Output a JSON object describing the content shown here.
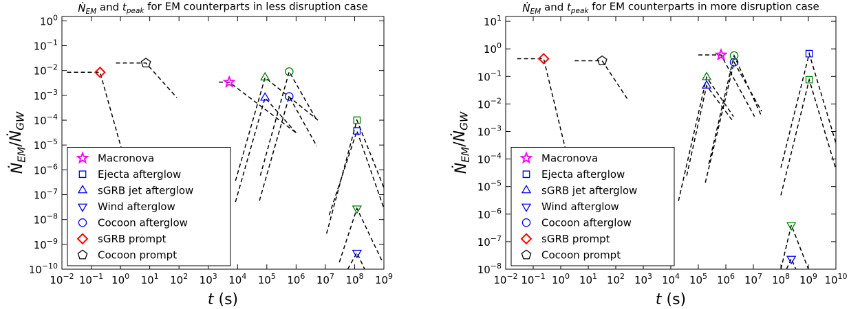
{
  "chart_data": [
    {
      "type": "scatter",
      "title": [
        {
          "text": "Ṅ",
          "italic": true
        },
        {
          "text": "EM",
          "italic": true,
          "sub": true
        },
        {
          "text": " and "
        },
        {
          "text": "t",
          "italic": true
        },
        {
          "text": "peak",
          "italic": true,
          "sub": true
        },
        {
          "text": " for EM counterparts in less disruption case"
        }
      ],
      "x_label": [
        {
          "text": "t",
          "italic": true
        },
        {
          "text": " (s)"
        }
      ],
      "y_label": [
        {
          "text": "Ṅ",
          "italic": true
        },
        {
          "text": "EM",
          "italic": true,
          "sub": true
        },
        {
          "text": "/"
        },
        {
          "text": "Ṅ",
          "italic": true
        },
        {
          "text": "GW",
          "italic": true,
          "sub": true
        }
      ],
      "log_x": true,
      "log_y": true,
      "legend": "lower left",
      "xlim": [
        0.01,
        1000000000
      ],
      "ylim": [
        1e-10,
        1.5
      ],
      "xticks": [
        {
          "value": 0.01,
          "label": "10",
          "exp": "−2"
        },
        {
          "value": 0.1,
          "label": "10",
          "exp": "−1"
        },
        {
          "value": 1,
          "label": "10",
          "exp": "0"
        },
        {
          "value": 10,
          "label": "10",
          "exp": "1"
        },
        {
          "value": 100,
          "label": "10",
          "exp": "2"
        },
        {
          "value": 1000,
          "label": "10",
          "exp": "3"
        },
        {
          "value": 10000,
          "label": "10",
          "exp": "4"
        },
        {
          "value": 100000,
          "label": "10",
          "exp": "5"
        },
        {
          "value": 1000000,
          "label": "10",
          "exp": "6"
        },
        {
          "value": 10000000,
          "label": "10",
          "exp": "7"
        },
        {
          "value": 100000000,
          "label": "10",
          "exp": "8"
        },
        {
          "value": 1000000000,
          "label": "10",
          "exp": "9"
        }
      ],
      "yticks": [
        {
          "value": 1e-10,
          "label": "10",
          "exp": "−10"
        },
        {
          "value": 1e-09,
          "label": "10",
          "exp": "−9"
        },
        {
          "value": 1e-08,
          "label": "10",
          "exp": "−8"
        },
        {
          "value": 1e-07,
          "label": "10",
          "exp": "−7"
        },
        {
          "value": 1e-06,
          "label": "10",
          "exp": "−6"
        },
        {
          "value": 1e-05,
          "label": "10",
          "exp": "−5"
        },
        {
          "value": 0.0001,
          "label": "10",
          "exp": "−4"
        },
        {
          "value": 0.001,
          "label": "10",
          "exp": "−3"
        },
        {
          "value": 0.01,
          "label": "10",
          "exp": "−2"
        },
        {
          "value": 0.1,
          "label": "10",
          "exp": "−1"
        },
        {
          "value": 1,
          "label": "10",
          "exp": "0"
        }
      ],
      "series": [
        {
          "name": "Macronova",
          "color": "#ff00ff",
          "marker": "star",
          "x": [
            5200
          ],
          "values": [
            0.0034
          ]
        },
        {
          "name": "Ejecta afterglow",
          "color": "#0000ff",
          "marker": "square",
          "x": [
            120000000
          ],
          "values": [
            3.7e-05
          ]
        },
        {
          "name": "sGRB jet afterglow",
          "color": "#0000ff",
          "marker": "triangle-up",
          "x": [
            87000
          ],
          "values": [
            0.0008
          ]
        },
        {
          "name": "Wind afterglow",
          "color": "#0000ff",
          "marker": "triangle-down",
          "x": [
            120000000
          ],
          "values": [
            4.6e-10
          ]
        },
        {
          "name": "Cocoon afterglow",
          "color": "#0000ff",
          "marker": "circle",
          "x": [
            580000
          ],
          "values": [
            0.0009
          ]
        },
        {
          "name": "sGRB prompt",
          "color": "#ff0000",
          "marker": "diamond",
          "x": [
            0.2
          ],
          "values": [
            0.0085
          ]
        },
        {
          "name": "Cocoon prompt",
          "color": "#000000",
          "marker": "pentagon",
          "x": [
            7.4
          ],
          "values": [
            0.02
          ]
        },
        {
          "color": "#008000",
          "marker": "square",
          "x": [
            120000000
          ],
          "values": [
            0.0001
          ]
        },
        {
          "color": "#008000",
          "marker": "triangle-up",
          "x": [
            87000
          ],
          "values": [
            0.0052
          ]
        },
        {
          "color": "#008000",
          "marker": "triangle-down",
          "x": [
            120000000
          ],
          "values": [
            2.8e-08
          ]
        },
        {
          "color": "#008000",
          "marker": "circle",
          "x": [
            580000
          ],
          "values": [
            0.009
          ]
        }
      ],
      "curves": [
        {
          "x": [
            0.015,
            0.2,
            1.1
          ],
          "values": [
            0.0085,
            0.0085,
            6.7e-06
          ]
        },
        {
          "x": [
            0.7,
            7.4,
            85
          ],
          "values": [
            0.02,
            0.02,
            0.0008
          ]
        },
        {
          "x": [
            2300,
            5200,
            1000000
          ],
          "values": [
            0.0034,
            0.0034,
            3.1e-05
          ]
        },
        {
          "x": [
            8500,
            87000,
            5600000
          ],
          "values": [
            3.6e-07,
            0.0052,
            0.0001
          ]
        },
        {
          "x": [
            8500,
            87000,
            1000000
          ],
          "values": [
            5.1e-08,
            0.0008,
            3.1e-05
          ]
        },
        {
          "x": [
            60000,
            580000,
            5100000
          ],
          "values": [
            5.9e-07,
            0.009,
            0.0001
          ]
        },
        {
          "x": [
            56000,
            580000,
            5100000
          ],
          "values": [
            5.7e-08,
            0.0009,
            9e-06
          ]
        },
        {
          "x": [
            11000000,
            120000000,
            1000000000
          ],
          "values": [
            2.7e-09,
            0.0001,
            1.9e-07
          ]
        },
        {
          "x": [
            13500000,
            120000000,
            1000000000
          ],
          "values": [
            1.5e-08,
            3.7e-05,
            2.8e-08
          ]
        },
        {
          "x": [
            30000000,
            120000000,
            870000000
          ],
          "values": [
            1.9e-10,
            2.8e-08,
            2.1e-10
          ]
        },
        {
          "x": [
            58000000,
            120000000,
            220000000
          ],
          "values": [
            1e-10,
            4.6e-10,
            1e-10
          ]
        }
      ]
    },
    {
      "type": "scatter",
      "title": [
        {
          "text": "Ṅ",
          "italic": true
        },
        {
          "text": "EM",
          "italic": true,
          "sub": true
        },
        {
          "text": " and "
        },
        {
          "text": "t",
          "italic": true
        },
        {
          "text": "peak",
          "italic": true,
          "sub": true
        },
        {
          "text": " for EM counterparts in more disruption case"
        }
      ],
      "x_label": [
        {
          "text": "t",
          "italic": true
        },
        {
          "text": " (s)"
        }
      ],
      "y_label": [
        {
          "text": "Ṅ",
          "italic": true
        },
        {
          "text": "EM",
          "italic": true,
          "sub": true
        },
        {
          "text": "/"
        },
        {
          "text": "Ṅ",
          "italic": true
        },
        {
          "text": "GW",
          "italic": true,
          "sub": true
        }
      ],
      "log_x": true,
      "log_y": true,
      "legend": "lower left",
      "xlim": [
        0.01,
        10000000000
      ],
      "ylim": [
        1e-08,
        15
      ],
      "xticks": [
        {
          "value": 0.01,
          "label": "10",
          "exp": "−2"
        },
        {
          "value": 0.1,
          "label": "10",
          "exp": "−1"
        },
        {
          "value": 1,
          "label": "10",
          "exp": "0"
        },
        {
          "value": 10,
          "label": "10",
          "exp": "1"
        },
        {
          "value": 100,
          "label": "10",
          "exp": "2"
        },
        {
          "value": 1000,
          "label": "10",
          "exp": "3"
        },
        {
          "value": 10000,
          "label": "10",
          "exp": "4"
        },
        {
          "value": 100000,
          "label": "10",
          "exp": "5"
        },
        {
          "value": 1000000,
          "label": "10",
          "exp": "6"
        },
        {
          "value": 10000000,
          "label": "10",
          "exp": "7"
        },
        {
          "value": 100000000,
          "label": "10",
          "exp": "8"
        },
        {
          "value": 1000000000,
          "label": "10",
          "exp": "9"
        },
        {
          "value": 10000000000,
          "label": "10",
          "exp": "10"
        }
      ],
      "yticks": [
        {
          "value": 1e-08,
          "label": "10",
          "exp": "−8"
        },
        {
          "value": 1e-07,
          "label": "10",
          "exp": "−7"
        },
        {
          "value": 1e-06,
          "label": "10",
          "exp": "−6"
        },
        {
          "value": 1e-05,
          "label": "10",
          "exp": "−5"
        },
        {
          "value": 0.0001,
          "label": "10",
          "exp": "−4"
        },
        {
          "value": 0.001,
          "label": "10",
          "exp": "−3"
        },
        {
          "value": 0.01,
          "label": "10",
          "exp": "−2"
        },
        {
          "value": 0.1,
          "label": "10",
          "exp": "−1"
        },
        {
          "value": 1,
          "label": "10",
          "exp": "0"
        },
        {
          "value": 10,
          "label": "10",
          "exp": "1"
        }
      ],
      "series": [
        {
          "name": "Macronova",
          "color": "#ff00ff",
          "marker": "star",
          "x": [
            670000
          ],
          "values": [
            0.6
          ]
        },
        {
          "name": "Ejecta afterglow",
          "color": "#0000ff",
          "marker": "square",
          "x": [
            1070000000
          ],
          "values": [
            0.67
          ]
        },
        {
          "name": "sGRB jet afterglow",
          "color": "#0000ff",
          "marker": "triangle-up",
          "x": [
            200000
          ],
          "values": [
            0.046
          ]
        },
        {
          "name": "Wind afterglow",
          "color": "#0000ff",
          "marker": "triangle-down",
          "x": [
            240000000
          ],
          "values": [
            2.4e-08
          ]
        },
        {
          "name": "Cocoon afterglow",
          "color": "#0000ff",
          "marker": "circle",
          "x": [
            2000000
          ],
          "values": [
            0.33
          ]
        },
        {
          "name": "sGRB prompt",
          "color": "#ff0000",
          "marker": "diamond",
          "x": [
            0.24
          ],
          "values": [
            0.44
          ]
        },
        {
          "name": "Cocoon prompt",
          "color": "#000000",
          "marker": "pentagon",
          "x": [
            32
          ],
          "values": [
            0.37
          ]
        },
        {
          "color": "#008000",
          "marker": "square",
          "x": [
            1070000000
          ],
          "values": [
            0.076
          ]
        },
        {
          "color": "#008000",
          "marker": "triangle-up",
          "x": [
            200000
          ],
          "values": [
            0.093
          ]
        },
        {
          "color": "#008000",
          "marker": "triangle-down",
          "x": [
            240000000
          ],
          "values": [
            4e-07
          ]
        },
        {
          "color": "#008000",
          "marker": "circle",
          "x": [
            2000000
          ],
          "values": [
            0.57
          ]
        }
      ],
      "curves": [
        {
          "x": [
            0.026,
            0.24,
            1.6
          ],
          "values": [
            0.44,
            0.44,
            0.00017
          ]
        },
        {
          "x": [
            3.2,
            32,
            280
          ],
          "values": [
            0.37,
            0.37,
            0.014
          ]
        },
        {
          "x": [
            100000,
            670000,
            11000000
          ],
          "values": [
            0.6,
            0.6,
            0.0035
          ]
        },
        {
          "x": [
            19000,
            200000,
            1900000
          ],
          "values": [
            3e-06,
            0.093,
            0.0035
          ]
        },
        {
          "x": [
            38000,
            200000,
            1900000
          ],
          "values": [
            2.5e-05,
            0.046,
            0.0022
          ]
        },
        {
          "x": [
            240000,
            2000000,
            20000000
          ],
          "values": [
            6.6e-05,
            0.57,
            0.0035
          ]
        },
        {
          "x": [
            180000,
            2000000,
            20000000
          ],
          "values": [
            1.4e-05,
            0.33,
            0.0054
          ]
        },
        {
          "x": [
            100000000,
            1070000000,
            10000000000
          ],
          "values": [
            4.8e-05,
            0.67,
            0.00038
          ]
        },
        {
          "x": [
            100000000,
            1070000000,
            10000000000
          ],
          "values": [
            4.8e-06,
            0.076,
            4.3e-05
          ]
        },
        {
          "x": [
            100000000,
            240000000,
            1000000000
          ],
          "values": [
            1e-08,
            4e-07,
            1e-08
          ]
        },
        {
          "x": [
            160000000,
            240000000,
            350000000
          ],
          "values": [
            1e-08,
            2.4e-08,
            1e-08
          ]
        }
      ]
    }
  ]
}
